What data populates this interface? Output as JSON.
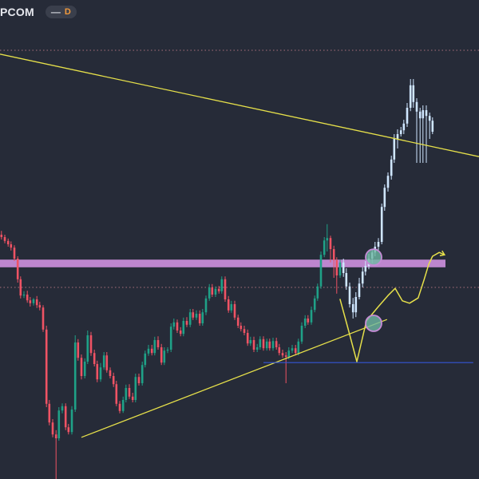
{
  "header": {
    "symbol": "PCOM",
    "interval_badge": "D",
    "collapse_icon": "minus-icon"
  },
  "colors": {
    "background": "#262b38",
    "candle_up": "#1fa187",
    "candle_down": "#ef5364",
    "projection_candle": "#cfe6ff",
    "resistance_zone": "#c58bd6",
    "trendline": "#e6e04a",
    "support_line": "#3556d6",
    "dotted_grid": "#a9707c",
    "marker_circle": "#6fb9a4"
  },
  "chart_data": {
    "type": "candlestick",
    "title": "",
    "xlabel": "",
    "ylabel": "",
    "ylim": [
      0,
      100
    ],
    "grid": false,
    "annotations": [
      {
        "kind": "descending-trendline",
        "from": [
          0,
          88.7
        ],
        "to": [
          100,
          67.3
        ]
      },
      {
        "kind": "ascending-trendline",
        "from": [
          17,
          8.7
        ],
        "to": [
          80.8,
          33.3
        ]
      },
      {
        "kind": "resistance-zone",
        "y_range": [
          44.2,
          45.8
        ]
      },
      {
        "kind": "support-line",
        "y": 24.3,
        "x_range": [
          55,
          98.8
        ]
      },
      {
        "kind": "dotted-level",
        "y": 89.5
      },
      {
        "kind": "dotted-level",
        "y": 40.0
      },
      {
        "kind": "marker-circle",
        "at": [
          78,
          46.3
        ]
      },
      {
        "kind": "marker-circle",
        "at": [
          78,
          32.5
        ]
      },
      {
        "kind": "projected-path",
        "points": [
          [
            71,
            37.5
          ],
          [
            72.5,
            32
          ],
          [
            74.5,
            24.5
          ],
          [
            76.5,
            33
          ],
          [
            79,
            36
          ],
          [
            81,
            38.3
          ],
          [
            82.5,
            39.8
          ],
          [
            84,
            37.2
          ],
          [
            85.5,
            36.7
          ],
          [
            87.3,
            37.8
          ],
          [
            88.5,
            41.5
          ],
          [
            89.5,
            44.8
          ],
          [
            90.3,
            46.5
          ],
          [
            91.7,
            47.3
          ],
          [
            92.8,
            46.8
          ]
        ]
      }
    ],
    "series": [
      {
        "style": "candles",
        "x": [
          0.3,
          1.0,
          1.7,
          2.3,
          3.0,
          3.7,
          4.3,
          5.0,
          5.7,
          6.3,
          7.0,
          7.7,
          8.3,
          9.0,
          9.7,
          10.3,
          11.0,
          11.7,
          12.3,
          13.0,
          13.7,
          14.3,
          15.0,
          15.7,
          16.3,
          17.0,
          17.7,
          18.3,
          19.0,
          19.7,
          20.3,
          21.0,
          21.7,
          22.3,
          23.0,
          23.7,
          24.3,
          25.0,
          25.7,
          26.3,
          27.0,
          27.7,
          28.3,
          29.0,
          29.7,
          30.3,
          31.0,
          31.7,
          32.3,
          33.0,
          33.7,
          34.3,
          35.0,
          35.7,
          36.3,
          37.0,
          37.7,
          38.3,
          39.0,
          39.7,
          40.3,
          41.0,
          41.7,
          42.3,
          43.0,
          43.7,
          44.3,
          45.0,
          45.7,
          46.3,
          47.0,
          47.7,
          48.3,
          49.0,
          49.7,
          50.3,
          51.0,
          51.7,
          52.3,
          53.0,
          53.7,
          54.3,
          55.0,
          55.7,
          56.3,
          57.0,
          57.7,
          58.3,
          59.0,
          59.7,
          60.3,
          61.0,
          61.7,
          62.3,
          63.0,
          63.7,
          64.3,
          65.0,
          65.7,
          66.3,
          67.0,
          67.7,
          68.3,
          69.0,
          69.7,
          70.3,
          71.0
        ],
        "open": [
          51.0,
          50.5,
          49.7,
          49.0,
          48.3,
          46.0,
          41.7,
          38.3,
          38.5,
          37.3,
          36.7,
          37.5,
          36.3,
          35.8,
          31.2,
          15.7,
          11.8,
          9.3,
          8.5,
          14.3,
          15.2,
          10.8,
          9.8,
          14.5,
          28.5,
          25.3,
          21.5,
          24.5,
          30.0,
          26.3,
          24.0,
          20.8,
          23.3,
          25.8,
          22.7,
          21.5,
          19.8,
          15.7,
          14.2,
          16.5,
          19.0,
          17.2,
          16.5,
          21.3,
          20.0,
          23.8,
          26.2,
          27.2,
          26.3,
          29.0,
          27.5,
          24.3,
          26.8,
          27.0,
          31.8,
          32.7,
          31.0,
          30.3,
          33.0,
          32.2,
          34.8,
          33.7,
          34.5,
          32.5,
          34.8,
          37.7,
          40.0,
          38.5,
          39.7,
          39.2,
          41.7,
          37.5,
          35.2,
          36.5,
          33.7,
          32.0,
          31.3,
          30.5,
          28.3,
          29.0,
          27.0,
          27.5,
          29.2,
          27.3,
          28.7,
          27.3,
          28.8,
          27.5,
          26.3,
          25.8,
          25.5,
          26.8,
          27.3,
          26.3,
          28.7,
          32.0,
          33.5,
          32.7,
          35.3,
          37.7,
          40.2,
          46.8,
          49.8,
          50.3,
          48.0,
          45.7,
          42.5
        ],
        "close": [
          50.5,
          49.7,
          49.0,
          48.3,
          46.0,
          41.7,
          38.3,
          38.5,
          37.3,
          36.7,
          37.5,
          36.3,
          35.8,
          31.2,
          15.7,
          11.8,
          9.3,
          8.5,
          14.3,
          15.2,
          10.8,
          9.8,
          14.5,
          28.5,
          25.3,
          21.5,
          24.5,
          30.0,
          26.3,
          24.0,
          20.8,
          23.3,
          25.8,
          22.7,
          21.5,
          19.8,
          15.7,
          14.2,
          16.5,
          19.0,
          17.2,
          16.5,
          21.3,
          20.0,
          23.8,
          26.2,
          27.2,
          26.3,
          29.0,
          27.5,
          24.3,
          26.8,
          27.0,
          31.8,
          32.7,
          31.0,
          30.3,
          33.0,
          32.2,
          34.8,
          33.7,
          34.5,
          32.5,
          34.8,
          37.7,
          40.0,
          38.5,
          39.7,
          39.2,
          41.7,
          37.5,
          35.2,
          36.5,
          33.7,
          32.0,
          31.3,
          30.5,
          28.3,
          29.0,
          27.0,
          27.5,
          29.2,
          27.3,
          28.7,
          27.3,
          28.8,
          27.5,
          26.3,
          25.8,
          25.5,
          26.8,
          27.3,
          26.3,
          28.7,
          32.0,
          33.5,
          32.7,
          35.3,
          37.7,
          40.2,
          46.8,
          49.8,
          50.3,
          48.0,
          45.7,
          42.5,
          45.2
        ],
        "high": [
          51.8,
          51.0,
          50.2,
          49.6,
          48.8,
          46.5,
          42.3,
          39.2,
          39.3,
          38.0,
          37.8,
          38.2,
          37.0,
          36.3,
          32.0,
          16.5,
          12.5,
          10.2,
          15.0,
          15.8,
          15.8,
          11.5,
          15.2,
          30.0,
          29.2,
          26.0,
          25.2,
          31.0,
          30.7,
          27.0,
          24.7,
          24.2,
          26.5,
          26.5,
          23.3,
          22.2,
          20.5,
          16.3,
          17.2,
          19.7,
          19.8,
          18.0,
          22.0,
          22.0,
          24.5,
          26.8,
          28.0,
          28.0,
          29.7,
          29.8,
          28.2,
          27.5,
          27.5,
          32.5,
          33.5,
          33.3,
          31.7,
          33.7,
          33.8,
          35.5,
          35.5,
          35.2,
          35.2,
          35.5,
          38.3,
          40.7,
          40.7,
          40.2,
          40.3,
          42.3,
          42.3,
          38.2,
          37.2,
          37.2,
          34.3,
          32.7,
          32.0,
          31.2,
          29.7,
          29.7,
          28.2,
          29.8,
          29.8,
          29.3,
          29.3,
          29.5,
          29.5,
          28.2,
          27.0,
          26.5,
          27.5,
          28.0,
          28.0,
          29.3,
          32.7,
          34.2,
          34.2,
          36.0,
          38.3,
          40.8,
          47.5,
          50.5,
          53.2,
          50.8,
          48.7,
          46.3,
          45.8
        ],
        "low": [
          50.0,
          49.2,
          48.5,
          47.7,
          45.5,
          41.0,
          37.7,
          37.8,
          36.8,
          36.0,
          36.2,
          35.7,
          35.2,
          30.7,
          15.0,
          11.2,
          8.7,
          0.0,
          8.0,
          13.7,
          10.2,
          9.3,
          9.3,
          14.0,
          24.7,
          20.8,
          21.0,
          24.0,
          25.7,
          23.5,
          20.2,
          20.3,
          22.8,
          22.2,
          21.0,
          19.2,
          15.2,
          13.7,
          13.8,
          16.0,
          16.7,
          16.0,
          16.0,
          19.5,
          19.5,
          23.3,
          25.7,
          25.8,
          25.8,
          27.0,
          23.8,
          23.8,
          26.3,
          26.5,
          31.2,
          30.5,
          29.8,
          29.8,
          31.7,
          31.7,
          33.2,
          33.2,
          32.0,
          32.0,
          34.2,
          37.2,
          38.0,
          38.0,
          38.7,
          38.7,
          37.0,
          34.7,
          34.7,
          33.2,
          31.5,
          30.8,
          30.0,
          27.8,
          27.8,
          26.5,
          26.5,
          27.0,
          26.8,
          26.8,
          26.8,
          26.8,
          27.0,
          25.8,
          25.3,
          20.0,
          25.0,
          26.3,
          25.8,
          25.8,
          28.2,
          31.5,
          32.2,
          32.2,
          34.8,
          37.2,
          39.7,
          46.3,
          47.5,
          45.2,
          42.0,
          38.7,
          42.0
        ]
      },
      {
        "style": "projected-candles",
        "x": [
          71.7,
          72.3,
          73.0,
          73.7,
          74.3,
          75.0,
          75.7,
          76.3,
          77.0,
          77.7,
          78.3,
          79.0,
          79.7,
          80.3,
          81.0,
          81.7,
          82.3,
          83.0,
          83.7,
          84.3,
          85.0,
          85.7,
          86.3,
          87.0,
          87.7,
          88.3,
          89.0,
          89.7,
          90.3
        ],
        "open": [
          45.2,
          43.0,
          40.2,
          36.5,
          34.8,
          38.0,
          40.8,
          43.3,
          44.5,
          46.0,
          47.3,
          48.5,
          49.5,
          56.8,
          60.8,
          63.3,
          66.7,
          71.0,
          72.0,
          72.8,
          74.2,
          77.5,
          82.2,
          78.7,
          76.7,
          75.3,
          77.0,
          75.8,
          74.8
        ],
        "close": [
          43.0,
          40.2,
          36.5,
          34.8,
          38.0,
          40.8,
          43.3,
          44.5,
          46.0,
          47.3,
          48.5,
          49.5,
          56.8,
          60.8,
          63.3,
          66.7,
          71.0,
          72.0,
          72.8,
          74.2,
          77.5,
          82.2,
          78.7,
          76.7,
          75.3,
          77.0,
          75.8,
          74.8,
          72.5
        ],
        "high": [
          46.0,
          44.0,
          41.0,
          37.8,
          39.0,
          42.0,
          44.2,
          45.5,
          47.0,
          48.0,
          49.5,
          50.3,
          57.5,
          61.5,
          64.0,
          67.5,
          72.0,
          73.0,
          73.5,
          75.0,
          78.5,
          83.5,
          83.5,
          79.5,
          77.5,
          78.0,
          78.0,
          76.5,
          75.5
        ],
        "low": [
          42.2,
          39.5,
          35.8,
          33.5,
          33.8,
          37.5,
          40.0,
          42.5,
          43.8,
          45.0,
          46.5,
          47.8,
          49.0,
          56.0,
          60.0,
          62.5,
          66.0,
          69.0,
          71.5,
          72.0,
          73.5,
          76.8,
          77.5,
          66.0,
          66.0,
          66.0,
          66.0,
          71.0,
          72.0
        ]
      }
    ]
  }
}
